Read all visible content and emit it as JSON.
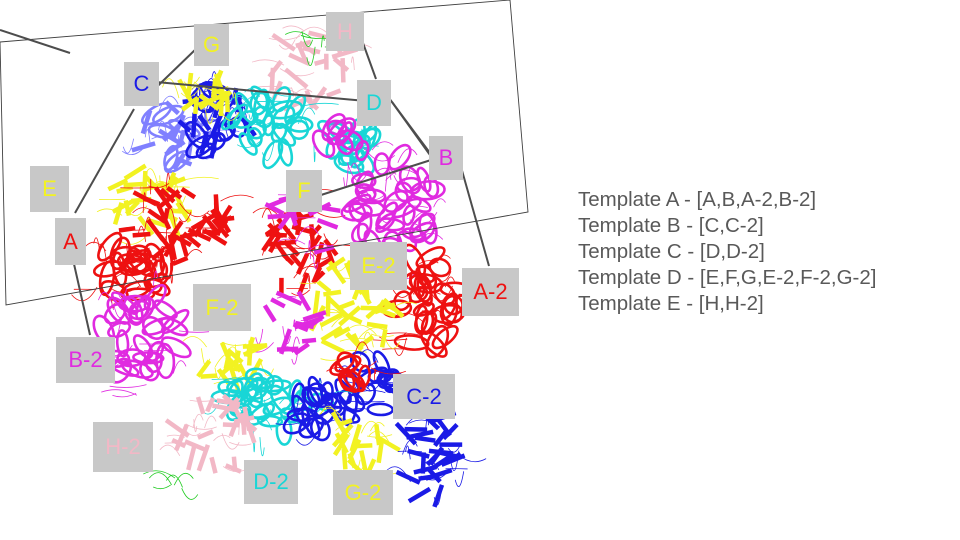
{
  "colors": {
    "label_bg": "#c8c8c8",
    "frame": "#404040",
    "connector": "#4d4d4d",
    "red": "#ee1111",
    "magenta": "#e02ae0",
    "yellow": "#f2f222",
    "blue": "#1a1ae6",
    "cyan": "#19d6d6",
    "pink": "#f2b8c6",
    "violet": "#8080ff",
    "green": "#22cc22"
  },
  "labels": {
    "A": {
      "text": "A",
      "color": "#ee1111"
    },
    "B": {
      "text": "B",
      "color": "#e02ae0"
    },
    "C": {
      "text": "C",
      "color": "#1a1ae6"
    },
    "D": {
      "text": "D",
      "color": "#19d6d6"
    },
    "E": {
      "text": "E",
      "color": "#f2f222"
    },
    "F": {
      "text": "F",
      "color": "#f2f222"
    },
    "G": {
      "text": "G",
      "color": "#f2f222"
    },
    "H": {
      "text": "H",
      "color": "#f2b8c6"
    },
    "A2": {
      "text": "A-2",
      "color": "#ee1111"
    },
    "B2": {
      "text": "B-2",
      "color": "#e02ae0"
    },
    "C2": {
      "text": "C-2",
      "color": "#1a1ae6"
    },
    "D2": {
      "text": "D-2",
      "color": "#19d6d6"
    },
    "E2": {
      "text": "E-2",
      "color": "#f2f222"
    },
    "F2": {
      "text": "F-2",
      "color": "#f2f222"
    },
    "G2": {
      "text": "G-2",
      "color": "#f2f222"
    },
    "H2": {
      "text": "H-2",
      "color": "#f2b8c6"
    }
  },
  "legend": [
    "Template A - [A,B,A-2,B-2]",
    "Template B - [C,C-2]",
    "Template C - [D,D-2]",
    "Template D - [E,F,G,E-2,F-2,G-2]",
    "Template E - [H,H-2]"
  ]
}
